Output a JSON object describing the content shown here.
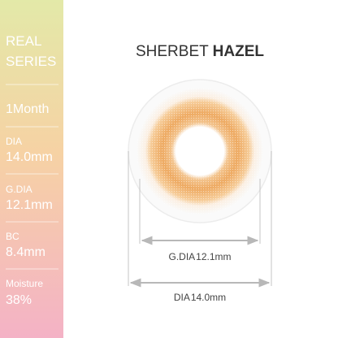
{
  "sidebar": {
    "series": [
      "REAL",
      "SERIES"
    ],
    "period": "1Month",
    "specs": [
      {
        "label": "DIA",
        "value": "14.0mm"
      },
      {
        "label": "G.DIA",
        "value": "12.1mm"
      },
      {
        "label": "BC",
        "value": "8.4mm"
      },
      {
        "label": "Moisture",
        "value": "38%"
      }
    ]
  },
  "title": {
    "name": "SHERBET",
    "color": "HAZEL"
  },
  "dimensions": [
    {
      "label": "G.DIA",
      "value": "12.1mm"
    },
    {
      "label": "DIA",
      "value": "14.0mm"
    }
  ]
}
